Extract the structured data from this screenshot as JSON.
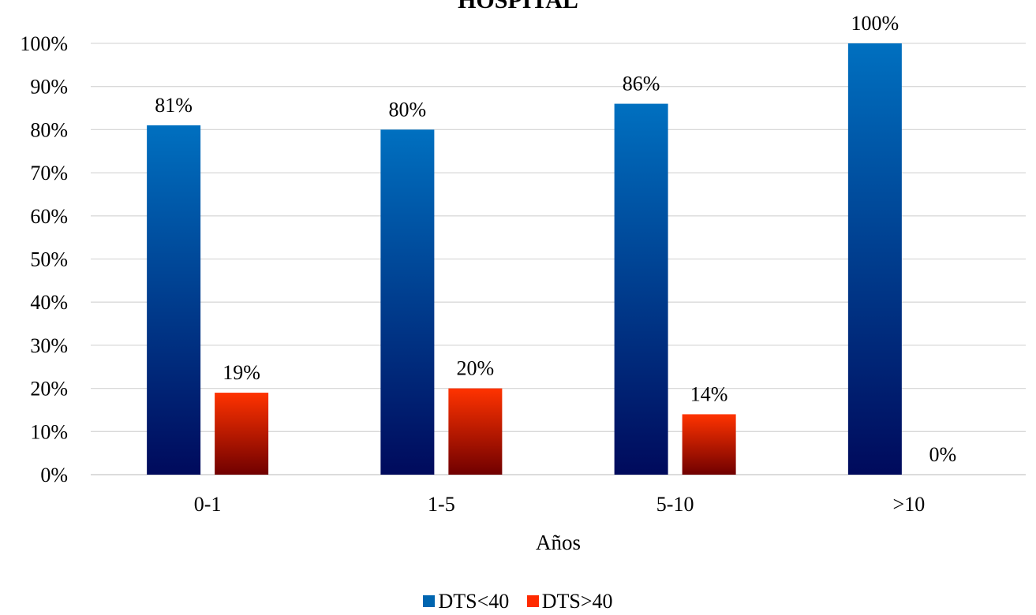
{
  "chart_data": {
    "type": "bar",
    "title": "HOSPITAL",
    "xlabel": "Años",
    "ylabel": "",
    "categories": [
      "0-1",
      "1-5",
      "5-10",
      ">10"
    ],
    "series": [
      {
        "name": "DTS<40",
        "values": [
          81,
          80,
          86,
          100
        ],
        "labels": [
          "81%",
          "80%",
          "86%",
          "100%"
        ],
        "color_top": "#0070C0",
        "color_bottom": "#000A5C"
      },
      {
        "name": "DTS>40",
        "values": [
          19,
          20,
          14,
          0
        ],
        "labels": [
          "19%",
          "20%",
          "14%",
          "0%"
        ],
        "color_top": "#FF3300",
        "color_bottom": "#700000"
      }
    ],
    "ylim": [
      0,
      100
    ],
    "yticks": [
      "0%",
      "10%",
      "20%",
      "30%",
      "40%",
      "50%",
      "60%",
      "70%",
      "80%",
      "90%",
      "100%"
    ],
    "grid": true,
    "legend_position": "bottom"
  }
}
